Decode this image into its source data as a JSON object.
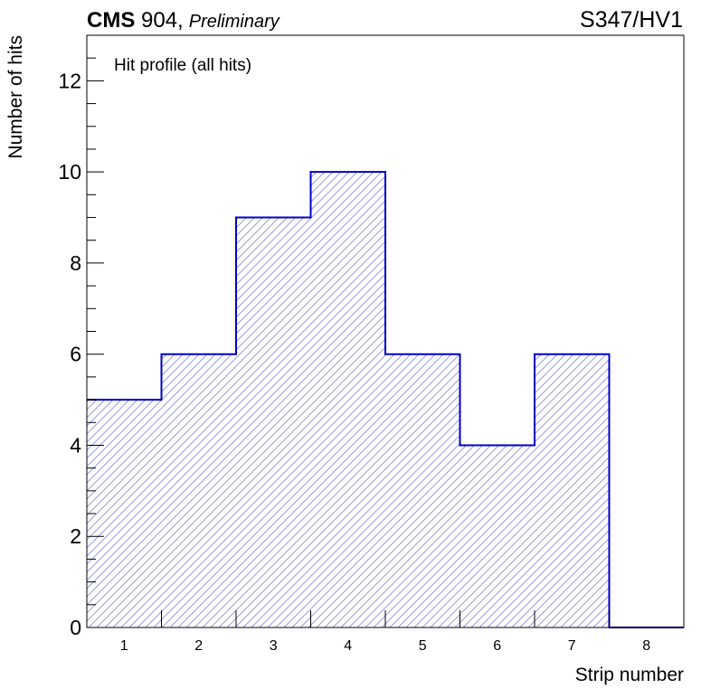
{
  "header": {
    "experiment": "CMS",
    "facility": " 904,",
    "status": "Preliminary",
    "run_label": "S347/HV1"
  },
  "colors": {
    "line": "#0000cc",
    "hatch": "#8888dd",
    "axis": "#000000"
  },
  "chart_data": {
    "type": "bar",
    "style": "step-histogram-hatched",
    "title": "Hit profile (all hits)",
    "xlabel": "Strip number",
    "ylabel": "Number of hits",
    "categories": [
      "1",
      "2",
      "3",
      "4",
      "5",
      "6",
      "7",
      "8"
    ],
    "values": [
      5,
      6,
      9,
      10,
      6,
      4,
      6,
      0
    ],
    "xlim": [
      0.5,
      8.5
    ],
    "ylim": [
      0,
      13
    ],
    "yticks": [
      "0",
      "2",
      "4",
      "6",
      "8",
      "10",
      "12"
    ],
    "grid": false
  }
}
